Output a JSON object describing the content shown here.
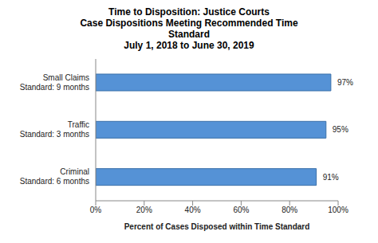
{
  "chart_data": {
    "type": "bar",
    "title": "Time to Disposition: Justice Courts\nCase Dispositions Meeting Recommended Time Standard",
    "subtitle": "July 1, 2018 to June 30, 2019",
    "orientation": "horizontal",
    "categories": [
      "Small Claims\nStandard: 9 months",
      "Traffic\nStandard: 3 months",
      "Criminal\nStandard: 6 months"
    ],
    "values": [
      97,
      95,
      91
    ],
    "value_labels": [
      "97%",
      "95%",
      "91%"
    ],
    "data_labels": true,
    "color": "#5592d6",
    "xlabel": "Percent of Cases Disposed within Time Standard",
    "xlim": [
      0,
      100
    ],
    "xticks": [
      {
        "value": 0,
        "label": "0%"
      },
      {
        "value": 20,
        "label": "20%"
      },
      {
        "value": 40,
        "label": "40%"
      },
      {
        "value": 60,
        "label": "60%"
      },
      {
        "value": 80,
        "label": "80%"
      },
      {
        "value": 100,
        "label": "100%"
      }
    ],
    "grid": false
  }
}
